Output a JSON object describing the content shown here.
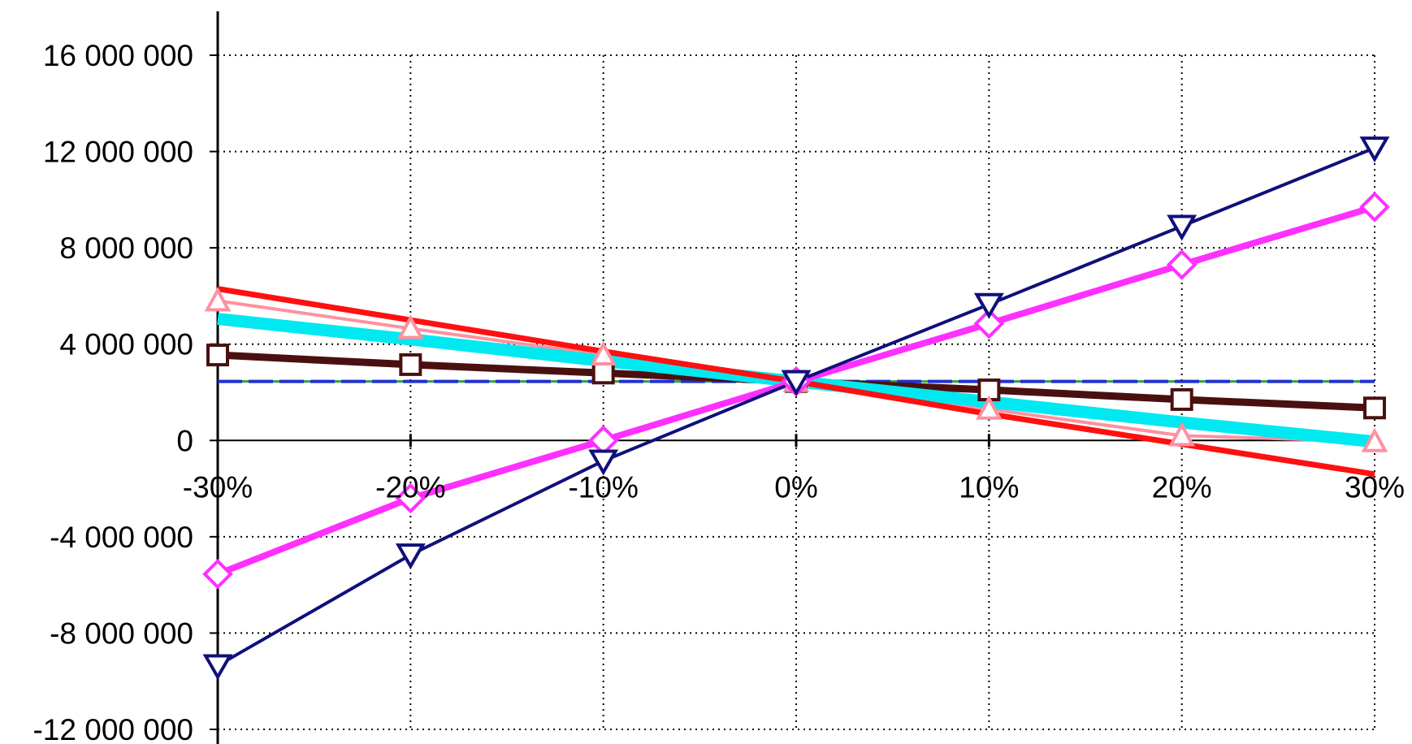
{
  "chart_data": {
    "type": "line",
    "title": "",
    "xlabel": "",
    "ylabel": "",
    "x": [
      "-30%",
      "-20%",
      "-10%",
      "0%",
      "10%",
      "20%",
      "30%"
    ],
    "ylim": [
      -12000000,
      16000000
    ],
    "yticks": [
      16000000,
      12000000,
      8000000,
      4000000,
      0,
      -4000000,
      -8000000,
      -12000000
    ],
    "ytick_labels": [
      "16 000 000",
      "12 000 000",
      "8 000 000",
      "4 000 000",
      "0",
      "-4 000 000",
      "-8 000 000",
      "-12 000 000"
    ],
    "grid": true,
    "legend": "none",
    "series": [
      {
        "color": "#2030d0",
        "marker": "none",
        "dashed": true,
        "values": [
          2450000,
          2450000,
          2450000,
          2450000,
          2450000,
          2450000,
          2450000
        ]
      },
      {
        "color": "#4a1010",
        "marker": "square",
        "values": [
          3550000,
          3150000,
          2800000,
          2450000,
          2100000,
          1700000,
          1350000
        ]
      },
      {
        "color": "#ff90a0",
        "marker": "triangle-up",
        "values": [
          5800000,
          4650000,
          3550000,
          2450000,
          1300000,
          200000,
          -50000
        ]
      },
      {
        "color": "#00e8f0",
        "marker": "none",
        "values": [
          5050000,
          4200000,
          3300000,
          2450000,
          1600000,
          750000,
          -50000
        ]
      },
      {
        "color": "#ff1010",
        "marker": "none",
        "values": [
          6300000,
          5000000,
          3700000,
          2450000,
          1100000,
          -150000,
          -1400000
        ]
      },
      {
        "color": "#ff30ff",
        "marker": "diamond",
        "values": [
          -5550000,
          -2400000,
          0,
          2450000,
          4850000,
          7300000,
          9700000
        ]
      },
      {
        "color": "#10107a",
        "marker": "triangle-down",
        "values": [
          -9350000,
          -4750000,
          -850000,
          2450000,
          5650000,
          8900000,
          12150000
        ]
      }
    ]
  }
}
